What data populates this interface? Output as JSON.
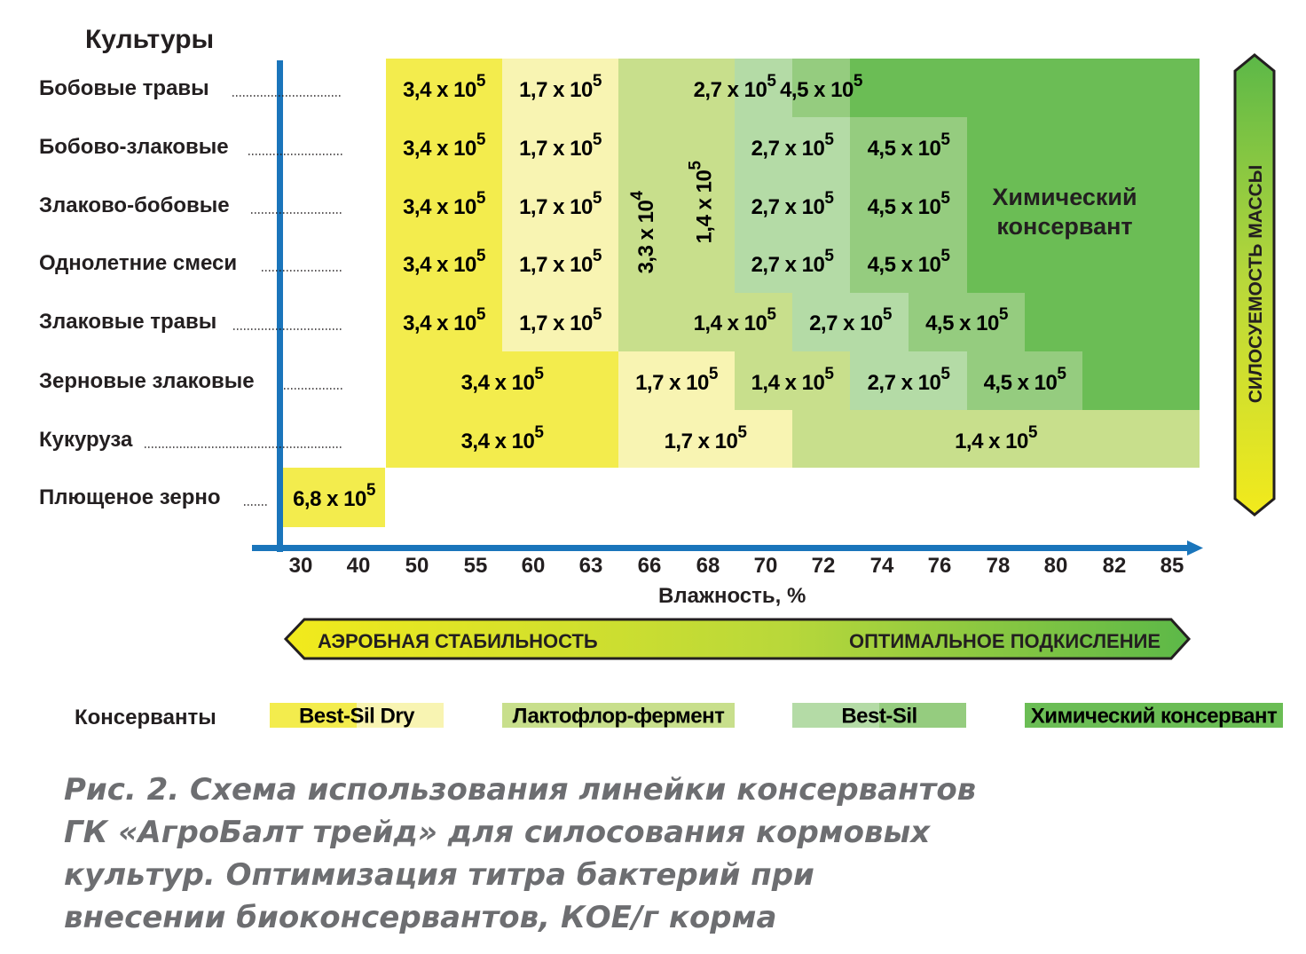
{
  "title": "Культуры",
  "crops": [
    "Бобовые травы",
    "Бобово-злаковые",
    "Злаково-бобовые",
    "Однолетние смеси",
    "Злаковые травы",
    "Зерновые злаковые",
    "Кукуруза",
    "Плющеное зерно"
  ],
  "moisture_ticks": [
    "30",
    "40",
    "50",
    "55",
    "60",
    "63",
    "66",
    "68",
    "70",
    "72",
    "74",
    "76",
    "78",
    "80",
    "82",
    "85"
  ],
  "x_axis_label": "Влажность, %",
  "arrow_left_label": "АЭРОБНАЯ  СТАБИЛЬНОСТЬ",
  "arrow_right_label": "ОПТИМАЛЬНОЕ ПОДКИСЛЕНИЕ",
  "vertical_arrow_label": "СИЛОСУЕМОСТЬ  МАССЫ",
  "chemical_label": [
    "Химический",
    "консервант"
  ],
  "colors": {
    "yellow": "#f3ec4d",
    "light_yellow": "#f8f4b2",
    "lime": "#c8df8c",
    "light_green": "#b4dba6",
    "mid_green": "#95cc7f",
    "green": "#6bbd55",
    "axis_blue": "#1a75bb"
  },
  "cells": [
    {
      "row": 0,
      "from": "50",
      "to": "55",
      "mantissa": "3,4 x 10",
      "exp": "5",
      "color": "yellow"
    },
    {
      "row": 0,
      "from": "60",
      "to": "63",
      "mantissa": "1,7 x 10",
      "exp": "5",
      "color": "light_yellow"
    },
    {
      "row": 0,
      "from": "66",
      "to": "66",
      "color": "lime"
    },
    {
      "row": 0,
      "from": "68",
      "to": "70",
      "mantissa": "2,7 x 10",
      "exp": "5",
      "color": "light_green"
    },
    {
      "row": 0,
      "from": "72",
      "to": "72",
      "mantissa": "4,5 x 10",
      "exp": "5",
      "color": "mid_green"
    },
    {
      "row": 0,
      "from": "74",
      "to": "85",
      "color": "green"
    },
    {
      "row": 1,
      "from": "50",
      "to": "55",
      "mantissa": "3,4 x 10",
      "exp": "5",
      "color": "yellow"
    },
    {
      "row": 1,
      "from": "60",
      "to": "63",
      "mantissa": "1,7 x 10",
      "exp": "5",
      "color": "light_yellow"
    },
    {
      "row": 1,
      "from": "70",
      "to": "72",
      "mantissa": "2,7 x 10",
      "exp": "5",
      "color": "light_green"
    },
    {
      "row": 1,
      "from": "74",
      "to": "76",
      "mantissa": "4,5 x 10",
      "exp": "5",
      "color": "mid_green"
    },
    {
      "row": 1,
      "from": "78",
      "to": "85",
      "color": "green"
    },
    {
      "row": 2,
      "from": "50",
      "to": "55",
      "mantissa": "3,4 x 10",
      "exp": "5",
      "color": "yellow"
    },
    {
      "row": 2,
      "from": "60",
      "to": "63",
      "mantissa": "1,7 x 10",
      "exp": "5",
      "color": "light_yellow"
    },
    {
      "row": 2,
      "from": "70",
      "to": "72",
      "mantissa": "2,7 x 10",
      "exp": "5",
      "color": "light_green"
    },
    {
      "row": 2,
      "from": "74",
      "to": "76",
      "mantissa": "4,5 x 10",
      "exp": "5",
      "color": "mid_green"
    },
    {
      "row": 2,
      "from": "78",
      "to": "85",
      "color": "green"
    },
    {
      "row": 3,
      "from": "50",
      "to": "55",
      "mantissa": "3,4 x 10",
      "exp": "5",
      "color": "yellow"
    },
    {
      "row": 3,
      "from": "60",
      "to": "63",
      "mantissa": "1,7 x 10",
      "exp": "5",
      "color": "light_yellow"
    },
    {
      "row": 3,
      "from": "70",
      "to": "72",
      "mantissa": "2,7 x 10",
      "exp": "5",
      "color": "light_green"
    },
    {
      "row": 3,
      "from": "74",
      "to": "76",
      "mantissa": "4,5 x 10",
      "exp": "5",
      "color": "mid_green"
    },
    {
      "row": 3,
      "from": "78",
      "to": "85",
      "color": "green"
    },
    {
      "row": 4,
      "from": "50",
      "to": "55",
      "mantissa": "3,4 x 10",
      "exp": "5",
      "color": "yellow"
    },
    {
      "row": 4,
      "from": "60",
      "to": "63",
      "mantissa": "1,7 x 10",
      "exp": "5",
      "color": "light_yellow"
    },
    {
      "row": 4,
      "from": "66",
      "to": "66",
      "color": "lime"
    },
    {
      "row": 4,
      "from": "68",
      "to": "70",
      "mantissa": "1,4 x 10",
      "exp": "5",
      "color": "lime"
    },
    {
      "row": 4,
      "from": "72",
      "to": "74",
      "mantissa": "2,7 x 10",
      "exp": "5",
      "color": "light_green"
    },
    {
      "row": 4,
      "from": "76",
      "to": "78",
      "mantissa": "4,5 x 10",
      "exp": "5",
      "color": "mid_green"
    },
    {
      "row": 4,
      "from": "80",
      "to": "85",
      "color": "green"
    },
    {
      "row": 5,
      "from": "50",
      "to": "63",
      "mantissa": "3,4 x 10",
      "exp": "5",
      "color": "yellow"
    },
    {
      "row": 5,
      "from": "66",
      "to": "68",
      "mantissa": "1,7 x 10",
      "exp": "5",
      "color": "light_yellow"
    },
    {
      "row": 5,
      "from": "70",
      "to": "72",
      "mantissa": "1,4 x 10",
      "exp": "5",
      "color": "lime"
    },
    {
      "row": 5,
      "from": "74",
      "to": "76",
      "mantissa": "2,7 x 10",
      "exp": "5",
      "color": "light_green"
    },
    {
      "row": 5,
      "from": "78",
      "to": "80",
      "mantissa": "4,5 x 10",
      "exp": "5",
      "color": "mid_green"
    },
    {
      "row": 5,
      "from": "82",
      "to": "85",
      "color": "green"
    },
    {
      "row": 6,
      "from": "50",
      "to": "63",
      "mantissa": "3,4 x 10",
      "exp": "5",
      "color": "yellow"
    },
    {
      "row": 6,
      "from": "66",
      "to": "70",
      "mantissa": "1,7 x 10",
      "exp": "5",
      "color": "light_yellow"
    },
    {
      "row": 6,
      "from": "72",
      "to": "85",
      "mantissa": "1,4 x 10",
      "exp": "5",
      "color": "lime"
    },
    {
      "row": 7,
      "from": "30",
      "to": "40",
      "mantissa": "6,8 x 10",
      "exp": "5",
      "color": "yellow"
    }
  ],
  "spans": [
    {
      "row_from": 1,
      "row_to": 3,
      "from": "66",
      "to": "66",
      "mantissa": "3,3 x 10",
      "exp": "4",
      "color": "lime"
    },
    {
      "row_from": 0,
      "row_to": 3,
      "from": "68",
      "to": "68",
      "mantissa": "1,4 x 10",
      "exp": "5",
      "color": "lime"
    }
  ],
  "chemical_block_label": {
    "from": "76",
    "to": "82",
    "row_from": 1,
    "row_to": 3
  },
  "legend": {
    "title": "Консерванты",
    "items": [
      {
        "label": "Best-Sil Dry",
        "from": "yellow",
        "to": "light_yellow"
      },
      {
        "label": "Лактофлор-фермент",
        "from": "lime",
        "to": "lime"
      },
      {
        "label": "Best-Sil",
        "from": "light_green",
        "to": "mid_green"
      },
      {
        "label": "Химический консервант",
        "from": "green",
        "to": "green"
      }
    ]
  },
  "caption": [
    "Рис. 2. Схема использования линейки консервантов",
    "ГК «АгроБалт трейд» для силосования кормовых",
    "культур. Оптимизация титра бактерий при",
    "внесении биоконсервантов, КОЕ/г корма"
  ]
}
